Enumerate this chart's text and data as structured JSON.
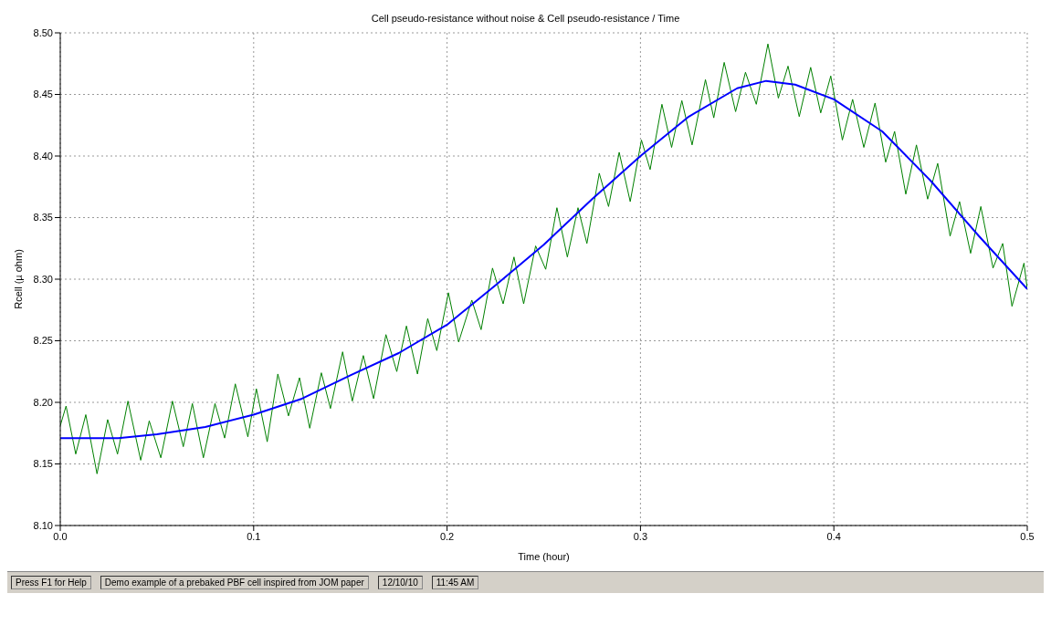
{
  "chart_data": {
    "type": "line",
    "title": "Cell pseudo-resistance without noise & Cell pseudo-resistance / Time",
    "xlabel": "Time (hour)",
    "ylabel": "Rcell (µ ohm)",
    "xlim": [
      0,
      0.5
    ],
    "xticks": [
      {
        "value": 0,
        "label": "0.0"
      },
      0.1,
      0.2,
      0.3,
      0.4,
      0.5
    ],
    "ylim": [
      8.1,
      8.5
    ],
    "yticks": [
      {
        "value": 8.1,
        "label": "8.10"
      },
      8.15,
      {
        "value": 8.2,
        "label": "8.20"
      },
      8.25,
      {
        "value": 8.3,
        "label": "8.30"
      },
      8.35,
      {
        "value": 8.4,
        "label": "8.40"
      },
      8.45,
      {
        "value": 8.5,
        "label": "8.50"
      }
    ],
    "grid": true,
    "legend": false,
    "marker": "none",
    "line_style": "solid",
    "series": [
      {
        "color": "#008000",
        "x": [
          0,
          0.003,
          0.008,
          0.0132,
          0.019,
          0.0245,
          0.0296,
          0.035,
          0.0416,
          0.046,
          0.052,
          0.058,
          0.0636,
          0.0683,
          0.074,
          0.08,
          0.085,
          0.0905,
          0.097,
          0.1014,
          0.107,
          0.1125,
          0.118,
          0.1237,
          0.129,
          0.135,
          0.1397,
          0.146,
          0.151,
          0.1567,
          0.162,
          0.1684,
          0.174,
          0.179,
          0.1847,
          0.19,
          0.1947,
          0.2007,
          0.206,
          0.2128,
          0.2176,
          0.2235,
          0.229,
          0.2346,
          0.2396,
          0.2458,
          0.251,
          0.2568,
          0.2622,
          0.2677,
          0.2723,
          0.2787,
          0.2835,
          0.289,
          0.2947,
          0.3005,
          0.305,
          0.3111,
          0.3161,
          0.3214,
          0.3267,
          0.3336,
          0.3379,
          0.3433,
          0.3492,
          0.3543,
          0.3599,
          0.3659,
          0.3713,
          0.3763,
          0.3821,
          0.388,
          0.3932,
          0.3984,
          0.4044,
          0.4097,
          0.4155,
          0.4213,
          0.4268,
          0.4314,
          0.4372,
          0.4427,
          0.4485,
          0.4537,
          0.4601,
          0.465,
          0.4707,
          0.476,
          0.4823,
          0.4873,
          0.4921,
          0.4983,
          0.5
        ],
        "values": [
          8.181,
          8.197,
          8.158,
          8.19,
          8.142,
          8.186,
          8.158,
          8.201,
          8.153,
          8.185,
          8.155,
          8.201,
          8.164,
          8.199,
          8.155,
          8.199,
          8.171,
          8.215,
          8.172,
          8.211,
          8.168,
          8.223,
          8.189,
          8.22,
          8.179,
          8.224,
          8.195,
          8.241,
          8.201,
          8.238,
          8.203,
          8.255,
          8.225,
          8.262,
          8.223,
          8.268,
          8.242,
          8.289,
          8.249,
          8.283,
          8.259,
          8.309,
          8.28,
          8.318,
          8.28,
          8.327,
          8.308,
          8.358,
          8.318,
          8.358,
          8.329,
          8.386,
          8.359,
          8.403,
          8.363,
          8.413,
          8.389,
          8.442,
          8.407,
          8.445,
          8.409,
          8.462,
          8.431,
          8.476,
          8.436,
          8.468,
          8.442,
          8.491,
          8.447,
          8.473,
          8.432,
          8.472,
          8.435,
          8.465,
          8.413,
          8.446,
          8.407,
          8.443,
          8.395,
          8.42,
          8.369,
          8.409,
          8.365,
          8.394,
          8.335,
          8.363,
          8.321,
          8.359,
          8.309,
          8.329,
          8.278,
          8.313,
          8.292
        ]
      },
      {
        "color": "#0000ff",
        "x": [
          0,
          0.03,
          0.05,
          0.075,
          0.1,
          0.125,
          0.15,
          0.175,
          0.2,
          0.225,
          0.25,
          0.275,
          0.3,
          0.325,
          0.35,
          0.365,
          0.38,
          0.4,
          0.425,
          0.45,
          0.475,
          0.5
        ],
        "values": [
          8.171,
          8.171,
          8.174,
          8.18,
          8.19,
          8.203,
          8.222,
          8.24,
          8.263,
          8.295,
          8.328,
          8.365,
          8.4,
          8.432,
          8.455,
          8.461,
          8.458,
          8.446,
          8.42,
          8.38,
          8.335,
          8.292
        ]
      }
    ],
    "annotations": [
      "Press F1 for Help",
      "Demo example of a prebaked PBF cell inspired from JOM paper",
      "12/10/10",
      "11:45 AM"
    ]
  }
}
